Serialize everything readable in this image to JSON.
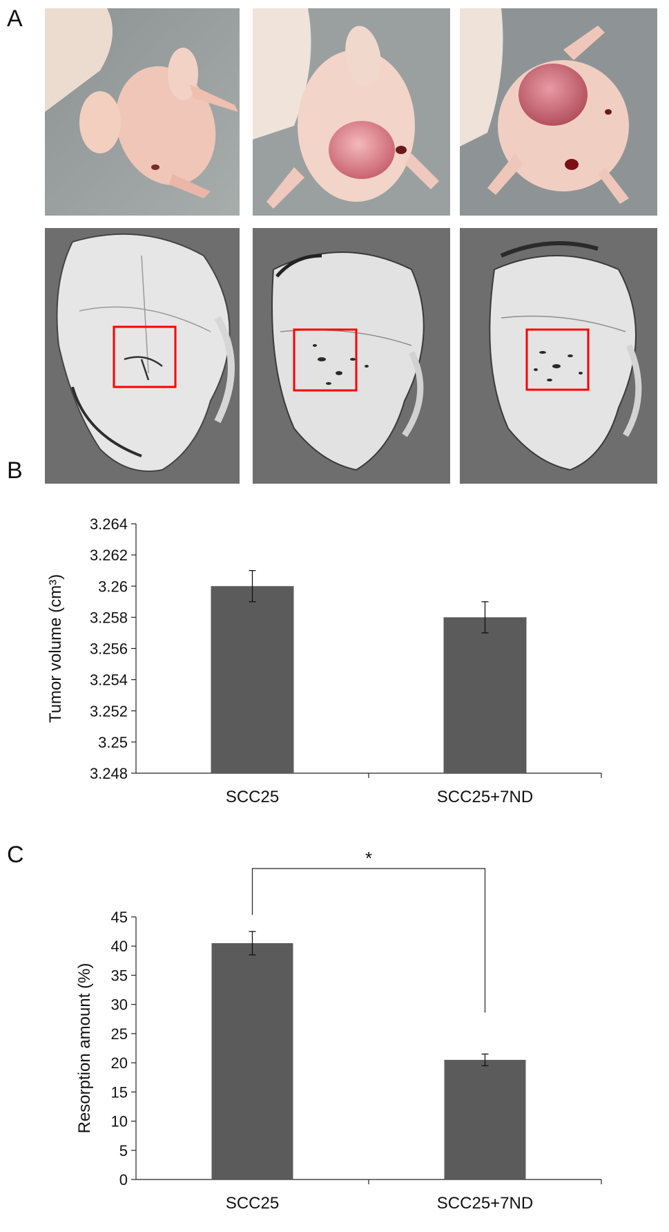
{
  "figure": {
    "panel_labels": [
      "A",
      "B",
      "C"
    ]
  },
  "panel_a": {
    "photos": [
      {
        "kind": "mouse-photo",
        "tumor": false
      },
      {
        "kind": "mouse-photo",
        "tumor": true
      },
      {
        "kind": "mouse-photo",
        "tumor": true
      }
    ],
    "scans": [
      {
        "kind": "skull-ct-render",
        "roi_box_color": "#ff0000"
      },
      {
        "kind": "skull-ct-render",
        "roi_box_color": "#ff0000"
      },
      {
        "kind": "skull-ct-render",
        "roi_box_color": "#ff0000"
      }
    ]
  },
  "colors": {
    "bar": "#5b5b5b",
    "axis": "#222222",
    "roi": "#ff0000",
    "scan_bg": "#6e6e6e"
  },
  "chart_data": [
    {
      "type": "bar",
      "panel": "B",
      "categories": [
        "SCC25",
        "SCC25+7ND"
      ],
      "values": [
        3.26,
        3.258
      ],
      "errors": [
        0.001,
        0.001
      ],
      "ylabel": "Tumor volume (cm³)",
      "ylim": [
        3.248,
        3.264
      ],
      "yticks": [
        "3.248",
        "3.25",
        "3.252",
        "3.254",
        "3.256",
        "3.258",
        "3.26",
        "3.262",
        "3.264"
      ],
      "grid": false,
      "legend": "none"
    },
    {
      "type": "bar",
      "panel": "C",
      "categories": [
        "SCC25",
        "SCC25+7ND"
      ],
      "values": [
        40.5,
        20.5
      ],
      "errors": [
        2.0,
        1.0
      ],
      "ylabel": "Resorption amount (%)",
      "ylim": [
        0,
        45
      ],
      "yticks": [
        "0",
        "5",
        "10",
        "15",
        "20",
        "25",
        "30",
        "35",
        "40",
        "45"
      ],
      "significance": "*",
      "grid": false,
      "legend": "none"
    }
  ]
}
